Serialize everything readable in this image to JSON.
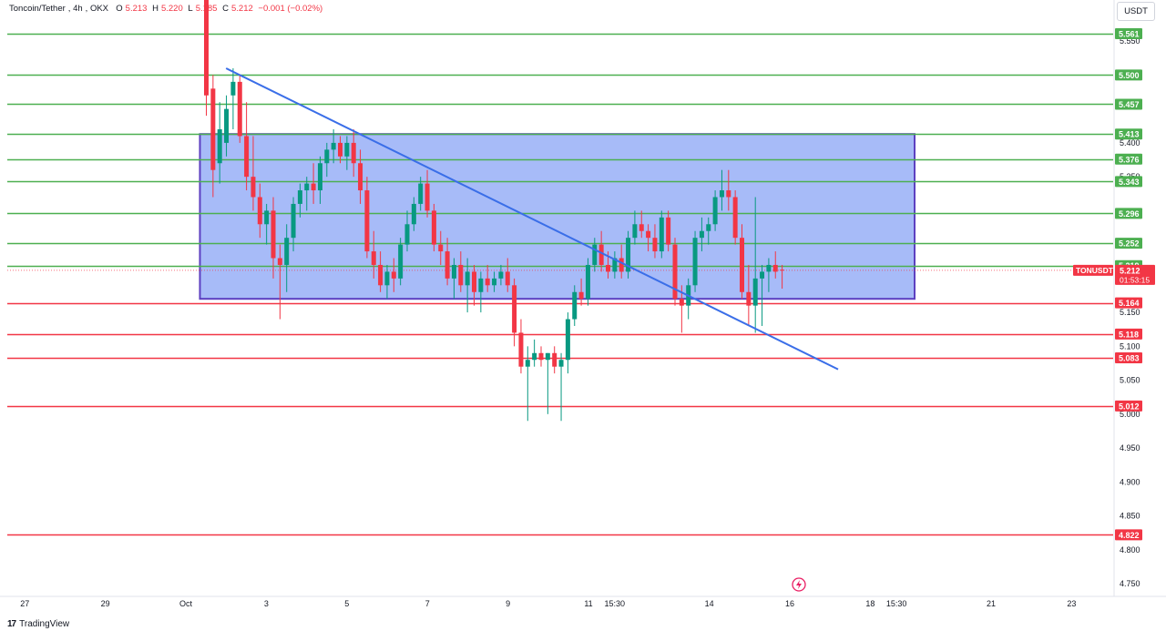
{
  "header": {
    "pair": "Toncoin/Tether",
    "timeframe": "4h",
    "exchange": "OKX",
    "o_key": "O",
    "o_val": "5.213",
    "h_key": "H",
    "h_val": "5.220",
    "l_key": "L",
    "l_val": "5.185",
    "c_key": "C",
    "c_val": "5.212",
    "change": "−0.001 (−0.02%)"
  },
  "currency": "USDT",
  "brand": {
    "logo": "17",
    "name": "TradingView"
  },
  "colors": {
    "up": "#089981",
    "down": "#f23645",
    "support_line": "#4caf50",
    "resistance_line": "#f23645",
    "trendline": "#3a6ee8",
    "box_fill": "#8aa4f5",
    "box_border": "#5c3fc0"
  },
  "chart_data": {
    "type": "candlestick",
    "symbol_label": "TONUSDT",
    "last_price": "5.212",
    "countdown": "01:53:15",
    "y_range": [
      4.72,
      5.66
    ],
    "y_ticks": [
      "5.550",
      "5.400",
      "5.350",
      "5.150",
      "5.100",
      "5.050",
      "5.000",
      "4.950",
      "4.900",
      "4.850",
      "4.800",
      "4.750"
    ],
    "x_labels": [
      {
        "label": "27",
        "day": -4
      },
      {
        "label": "29",
        "day": -2
      },
      {
        "label": "Oct",
        "day": 0
      },
      {
        "label": "3",
        "day": 2
      },
      {
        "label": "5",
        "day": 4
      },
      {
        "label": "7",
        "day": 6
      },
      {
        "label": "9",
        "day": 8
      },
      {
        "label": "11",
        "day": 10
      },
      {
        "label": "15:30",
        "day": 10.65
      },
      {
        "label": "14",
        "day": 13
      },
      {
        "label": "16",
        "day": 15
      },
      {
        "label": "18",
        "day": 17
      },
      {
        "label": "15:30",
        "day": 17.65
      },
      {
        "label": "21",
        "day": 20
      },
      {
        "label": "23",
        "day": 22
      }
    ],
    "levels": [
      {
        "price": 5.561,
        "label": "5.561",
        "kind": "support"
      },
      {
        "price": 5.5,
        "label": "5.500",
        "kind": "support"
      },
      {
        "price": 5.457,
        "label": "5.457",
        "kind": "support"
      },
      {
        "price": 5.413,
        "label": "5.413",
        "kind": "support"
      },
      {
        "price": 5.376,
        "label": "5.376",
        "kind": "support"
      },
      {
        "price": 5.343,
        "label": "5.343",
        "kind": "support"
      },
      {
        "price": 5.296,
        "label": "5.296",
        "kind": "support"
      },
      {
        "price": 5.252,
        "label": "5.252",
        "kind": "support"
      },
      {
        "price": 5.219,
        "label": "5.219",
        "kind": "support"
      },
      {
        "price": 5.164,
        "label": "5.164",
        "kind": "resistance"
      },
      {
        "price": 5.118,
        "label": "5.118",
        "kind": "resistance"
      },
      {
        "price": 5.083,
        "label": "5.083",
        "kind": "resistance"
      },
      {
        "price": 5.012,
        "label": "5.012",
        "kind": "resistance"
      },
      {
        "price": 4.822,
        "label": "4.822",
        "kind": "resistance"
      }
    ],
    "range_box": {
      "from_day": 0.35,
      "to_day": 18.1,
      "price_top": 5.413,
      "price_bottom": 5.17
    },
    "trendline": {
      "start": {
        "day": 1.0,
        "price": 5.51
      },
      "end": {
        "day": 16.2,
        "price": 5.066
      }
    },
    "candles": [
      {
        "o": 5.66,
        "h": 5.66,
        "l": 5.44,
        "c": 5.47
      },
      {
        "o": 5.48,
        "h": 5.5,
        "l": 5.32,
        "c": 5.36
      },
      {
        "o": 5.37,
        "h": 5.46,
        "l": 5.34,
        "c": 5.42
      },
      {
        "o": 5.4,
        "h": 5.47,
        "l": 5.38,
        "c": 5.45
      },
      {
        "o": 5.47,
        "h": 5.51,
        "l": 5.42,
        "c": 5.49
      },
      {
        "o": 5.49,
        "h": 5.5,
        "l": 5.4,
        "c": 5.41
      },
      {
        "o": 5.41,
        "h": 5.46,
        "l": 5.33,
        "c": 5.35
      },
      {
        "o": 5.35,
        "h": 5.41,
        "l": 5.3,
        "c": 5.32
      },
      {
        "o": 5.32,
        "h": 5.34,
        "l": 5.26,
        "c": 5.28
      },
      {
        "o": 5.28,
        "h": 5.31,
        "l": 5.25,
        "c": 5.3
      },
      {
        "o": 5.3,
        "h": 5.32,
        "l": 5.2,
        "c": 5.23
      },
      {
        "o": 5.23,
        "h": 5.25,
        "l": 5.14,
        "c": 5.22
      },
      {
        "o": 5.22,
        "h": 5.28,
        "l": 5.18,
        "c": 5.26
      },
      {
        "o": 5.26,
        "h": 5.32,
        "l": 5.24,
        "c": 5.31
      },
      {
        "o": 5.31,
        "h": 5.34,
        "l": 5.29,
        "c": 5.33
      },
      {
        "o": 5.33,
        "h": 5.35,
        "l": 5.3,
        "c": 5.34
      },
      {
        "o": 5.34,
        "h": 5.37,
        "l": 5.31,
        "c": 5.33
      },
      {
        "o": 5.33,
        "h": 5.38,
        "l": 5.31,
        "c": 5.37
      },
      {
        "o": 5.37,
        "h": 5.4,
        "l": 5.35,
        "c": 5.39
      },
      {
        "o": 5.39,
        "h": 5.42,
        "l": 5.37,
        "c": 5.4
      },
      {
        "o": 5.4,
        "h": 5.41,
        "l": 5.37,
        "c": 5.38
      },
      {
        "o": 5.38,
        "h": 5.41,
        "l": 5.36,
        "c": 5.4
      },
      {
        "o": 5.4,
        "h": 5.42,
        "l": 5.35,
        "c": 5.37
      },
      {
        "o": 5.37,
        "h": 5.39,
        "l": 5.31,
        "c": 5.33
      },
      {
        "o": 5.33,
        "h": 5.35,
        "l": 5.23,
        "c": 5.24
      },
      {
        "o": 5.24,
        "h": 5.27,
        "l": 5.2,
        "c": 5.22
      },
      {
        "o": 5.22,
        "h": 5.24,
        "l": 5.18,
        "c": 5.19
      },
      {
        "o": 5.19,
        "h": 5.22,
        "l": 5.17,
        "c": 5.21
      },
      {
        "o": 5.21,
        "h": 5.23,
        "l": 5.18,
        "c": 5.2
      },
      {
        "o": 5.2,
        "h": 5.26,
        "l": 5.19,
        "c": 5.25
      },
      {
        "o": 5.25,
        "h": 5.3,
        "l": 5.24,
        "c": 5.28
      },
      {
        "o": 5.28,
        "h": 5.32,
        "l": 5.27,
        "c": 5.31
      },
      {
        "o": 5.31,
        "h": 5.35,
        "l": 5.3,
        "c": 5.34
      },
      {
        "o": 5.34,
        "h": 5.36,
        "l": 5.29,
        "c": 5.3
      },
      {
        "o": 5.3,
        "h": 5.31,
        "l": 5.24,
        "c": 5.25
      },
      {
        "o": 5.25,
        "h": 5.27,
        "l": 5.22,
        "c": 5.24
      },
      {
        "o": 5.24,
        "h": 5.26,
        "l": 5.19,
        "c": 5.2
      },
      {
        "o": 5.2,
        "h": 5.23,
        "l": 5.17,
        "c": 5.22
      },
      {
        "o": 5.22,
        "h": 5.24,
        "l": 5.18,
        "c": 5.19
      },
      {
        "o": 5.19,
        "h": 5.23,
        "l": 5.15,
        "c": 5.21
      },
      {
        "o": 5.21,
        "h": 5.22,
        "l": 5.16,
        "c": 5.18
      },
      {
        "o": 5.18,
        "h": 5.21,
        "l": 5.15,
        "c": 5.2
      },
      {
        "o": 5.2,
        "h": 5.22,
        "l": 5.18,
        "c": 5.19
      },
      {
        "o": 5.19,
        "h": 5.21,
        "l": 5.18,
        "c": 5.2
      },
      {
        "o": 5.2,
        "h": 5.22,
        "l": 5.19,
        "c": 5.21
      },
      {
        "o": 5.21,
        "h": 5.23,
        "l": 5.18,
        "c": 5.19
      },
      {
        "o": 5.19,
        "h": 5.2,
        "l": 5.1,
        "c": 5.12
      },
      {
        "o": 5.12,
        "h": 5.14,
        "l": 5.06,
        "c": 5.07
      },
      {
        "o": 5.07,
        "h": 5.1,
        "l": 4.99,
        "c": 5.08
      },
      {
        "o": 5.08,
        "h": 5.11,
        "l": 5.07,
        "c": 5.09
      },
      {
        "o": 5.09,
        "h": 5.1,
        "l": 5.07,
        "c": 5.08
      },
      {
        "o": 5.08,
        "h": 5.09,
        "l": 5.0,
        "c": 5.09
      },
      {
        "o": 5.09,
        "h": 5.1,
        "l": 5.06,
        "c": 5.07
      },
      {
        "o": 5.07,
        "h": 5.09,
        "l": 4.99,
        "c": 5.08
      },
      {
        "o": 5.08,
        "h": 5.15,
        "l": 5.06,
        "c": 5.14
      },
      {
        "o": 5.14,
        "h": 5.19,
        "l": 5.13,
        "c": 5.18
      },
      {
        "o": 5.18,
        "h": 5.2,
        "l": 5.16,
        "c": 5.17
      },
      {
        "o": 5.17,
        "h": 5.23,
        "l": 5.16,
        "c": 5.22
      },
      {
        "o": 5.22,
        "h": 5.26,
        "l": 5.21,
        "c": 5.25
      },
      {
        "o": 5.25,
        "h": 5.27,
        "l": 5.21,
        "c": 5.22
      },
      {
        "o": 5.22,
        "h": 5.24,
        "l": 5.2,
        "c": 5.21
      },
      {
        "o": 5.21,
        "h": 5.24,
        "l": 5.2,
        "c": 5.23
      },
      {
        "o": 5.23,
        "h": 5.25,
        "l": 5.2,
        "c": 5.21
      },
      {
        "o": 5.21,
        "h": 5.27,
        "l": 5.2,
        "c": 5.26
      },
      {
        "o": 5.26,
        "h": 5.3,
        "l": 5.25,
        "c": 5.28
      },
      {
        "o": 5.28,
        "h": 5.3,
        "l": 5.26,
        "c": 5.27
      },
      {
        "o": 5.27,
        "h": 5.28,
        "l": 5.24,
        "c": 5.26
      },
      {
        "o": 5.26,
        "h": 5.28,
        "l": 5.23,
        "c": 5.24
      },
      {
        "o": 5.24,
        "h": 5.3,
        "l": 5.23,
        "c": 5.29
      },
      {
        "o": 5.29,
        "h": 5.3,
        "l": 5.24,
        "c": 5.25
      },
      {
        "o": 5.25,
        "h": 5.26,
        "l": 5.16,
        "c": 5.17
      },
      {
        "o": 5.17,
        "h": 5.19,
        "l": 5.12,
        "c": 5.16
      },
      {
        "o": 5.16,
        "h": 5.2,
        "l": 5.14,
        "c": 5.19
      },
      {
        "o": 5.19,
        "h": 5.27,
        "l": 5.18,
        "c": 5.26
      },
      {
        "o": 5.26,
        "h": 5.29,
        "l": 5.24,
        "c": 5.27
      },
      {
        "o": 5.27,
        "h": 5.29,
        "l": 5.25,
        "c": 5.28
      },
      {
        "o": 5.28,
        "h": 5.33,
        "l": 5.27,
        "c": 5.32
      },
      {
        "o": 5.32,
        "h": 5.36,
        "l": 5.3,
        "c": 5.33
      },
      {
        "o": 5.33,
        "h": 5.36,
        "l": 5.3,
        "c": 5.32
      },
      {
        "o": 5.32,
        "h": 5.33,
        "l": 5.25,
        "c": 5.26
      },
      {
        "o": 5.26,
        "h": 5.28,
        "l": 5.17,
        "c": 5.18
      },
      {
        "o": 5.18,
        "h": 5.22,
        "l": 5.13,
        "c": 5.16
      },
      {
        "o": 5.16,
        "h": 5.32,
        "l": 5.12,
        "c": 5.2
      },
      {
        "o": 5.2,
        "h": 5.22,
        "l": 5.13,
        "c": 5.21
      },
      {
        "o": 5.21,
        "h": 5.23,
        "l": 5.18,
        "c": 5.22
      },
      {
        "o": 5.22,
        "h": 5.24,
        "l": 5.2,
        "c": 5.21
      },
      {
        "o": 5.213,
        "h": 5.22,
        "l": 5.185,
        "c": 5.212
      }
    ]
  }
}
